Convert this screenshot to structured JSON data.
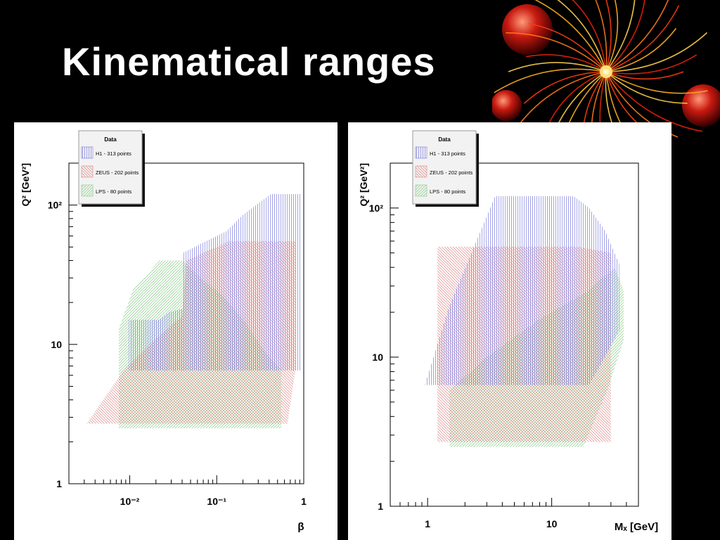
{
  "slide": {
    "title": "Kinematical ranges",
    "decoration_icon": "fireworks-icon"
  },
  "colors": {
    "h1": "#7777dd",
    "zeus": "#e08888",
    "lps": "#88cc88",
    "background": "#000000",
    "panel": "#ffffff"
  },
  "chart_data": [
    {
      "type": "area",
      "xlabel": "β",
      "ylabel": "Q² [GeV²]",
      "x_scale": "log",
      "y_scale": "log",
      "xlim": [
        0.002,
        1
      ],
      "ylim": [
        1,
        200
      ],
      "x_ticks": [
        {
          "value": 0.01,
          "label": "10⁻²"
        },
        {
          "value": 0.1,
          "label": "10⁻¹"
        },
        {
          "value": 1,
          "label": "1"
        }
      ],
      "y_ticks": [
        {
          "value": 1,
          "label": "1"
        },
        {
          "value": 10,
          "label": "10"
        },
        {
          "value": 100,
          "label": "10²"
        }
      ],
      "legend": {
        "title": "Data",
        "placement": "top-left",
        "entries": [
          "H1 - 313 points",
          "ZEUS - 202 points",
          "LPS - 80 points"
        ]
      },
      "series": [
        {
          "name": "LPS - 80 points",
          "hatch": "diag-right",
          "color_key": "lps",
          "polygon": [
            [
              0.0075,
              2.5
            ],
            [
              0.55,
              2.5
            ],
            [
              0.55,
              6.5
            ],
            [
              0.35,
              9
            ],
            [
              0.22,
              14
            ],
            [
              0.12,
              22
            ],
            [
              0.065,
              30
            ],
            [
              0.04,
              40
            ],
            [
              0.022,
              40
            ],
            [
              0.011,
              25
            ],
            [
              0.0075,
              13
            ]
          ]
        },
        {
          "name": "ZEUS - 202 points",
          "hatch": "diag-left",
          "color_key": "zeus",
          "polygon": [
            [
              0.0032,
              2.7
            ],
            [
              0.65,
              2.7
            ],
            [
              0.8,
              6.5
            ],
            [
              0.8,
              55
            ],
            [
              0.14,
              55
            ],
            [
              0.045,
              40
            ],
            [
              0.04,
              16
            ],
            [
              0.02,
              11
            ],
            [
              0.0085,
              6.5
            ]
          ]
        },
        {
          "name": "H1 - 313 points",
          "hatch": "vertical",
          "color_key": "h1",
          "polygon": [
            [
              0.0098,
              6.5
            ],
            [
              0.92,
              6.5
            ],
            [
              0.92,
              120
            ],
            [
              0.42,
              120
            ],
            [
              0.2,
              85
            ],
            [
              0.13,
              65
            ],
            [
              0.075,
              55
            ],
            [
              0.04,
              45
            ],
            [
              0.04,
              18
            ],
            [
              0.028,
              17
            ],
            [
              0.022,
              15
            ],
            [
              0.0098,
              15
            ]
          ]
        }
      ]
    },
    {
      "type": "area",
      "xlabel": "Mₓ [GeV]",
      "ylabel": "Q² [GeV²]",
      "x_scale": "log",
      "y_scale": "log",
      "xlim": [
        0.5,
        50
      ],
      "ylim": [
        1,
        200
      ],
      "x_ticks": [
        {
          "value": 1,
          "label": "1"
        },
        {
          "value": 10,
          "label": "10"
        }
      ],
      "y_ticks": [
        {
          "value": 1,
          "label": "1"
        },
        {
          "value": 10,
          "label": "10"
        },
        {
          "value": 100,
          "label": "10²"
        }
      ],
      "legend": {
        "title": "Data",
        "placement": "top-left",
        "entries": [
          "H1 - 313 points",
          "ZEUS - 202 points",
          "LPS - 80 points"
        ]
      },
      "series": [
        {
          "name": "LPS - 80 points",
          "hatch": "diag-right",
          "color_key": "lps",
          "polygon": [
            [
              1.5,
              2.5
            ],
            [
              18,
              2.5
            ],
            [
              28,
              6
            ],
            [
              38,
              13
            ],
            [
              38,
              28
            ],
            [
              32,
              40
            ],
            [
              20,
              28
            ],
            [
              8,
              18
            ],
            [
              3,
              10
            ],
            [
              1.5,
              6
            ]
          ]
        },
        {
          "name": "ZEUS - 202 points",
          "hatch": "diag-left",
          "color_key": "zeus",
          "polygon": [
            [
              1.2,
              2.7
            ],
            [
              30,
              2.7
            ],
            [
              30,
              50
            ],
            [
              16,
              55
            ],
            [
              1.2,
              55
            ]
          ]
        },
        {
          "name": "H1 - 313 points",
          "hatch": "vertical",
          "color_key": "h1",
          "polygon": [
            [
              0.95,
              6.5
            ],
            [
              20,
              6.5
            ],
            [
              35,
              15
            ],
            [
              35,
              42
            ],
            [
              27,
              70
            ],
            [
              20,
              100
            ],
            [
              15,
              120
            ],
            [
              3.5,
              120
            ],
            [
              1.5,
              22
            ]
          ]
        }
      ]
    }
  ]
}
